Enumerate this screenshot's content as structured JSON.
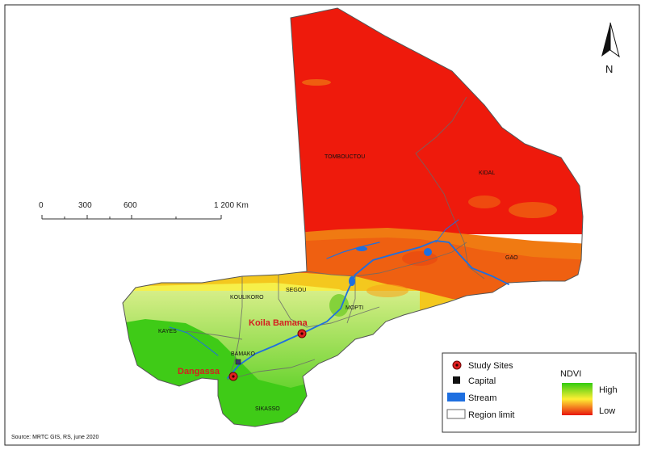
{
  "regions": [
    "TOMBOUCTOU",
    "KIDAL",
    "GAO",
    "MOPTI",
    "SEGOU",
    "KOULIKORO",
    "KAYES",
    "BAMAKO",
    "SIKASSO"
  ],
  "study_sites": [
    "Koila Bamana",
    "Dangassa"
  ],
  "scale_bar": {
    "ticks": [
      "0",
      "300",
      "600",
      "1 200 Km"
    ]
  },
  "north_arrow": {
    "label": "N"
  },
  "legend": {
    "items": [
      "Study Sites",
      "Capital",
      "Stream",
      "Region limit"
    ],
    "ndvi_title": "NDVI",
    "ndvi_high": "High",
    "ndvi_low": "Low"
  },
  "source": "Source: MRTC GIS, RS, june 2020",
  "colors": {
    "ndvi_high": "#33cc11",
    "ndvi_mid": "#ffee33",
    "ndvi_low": "#e8150d",
    "stream": "#1e6fe0",
    "site_marker": "#e02020",
    "site_label": "#d42020",
    "capital": "#3a3a6a"
  }
}
